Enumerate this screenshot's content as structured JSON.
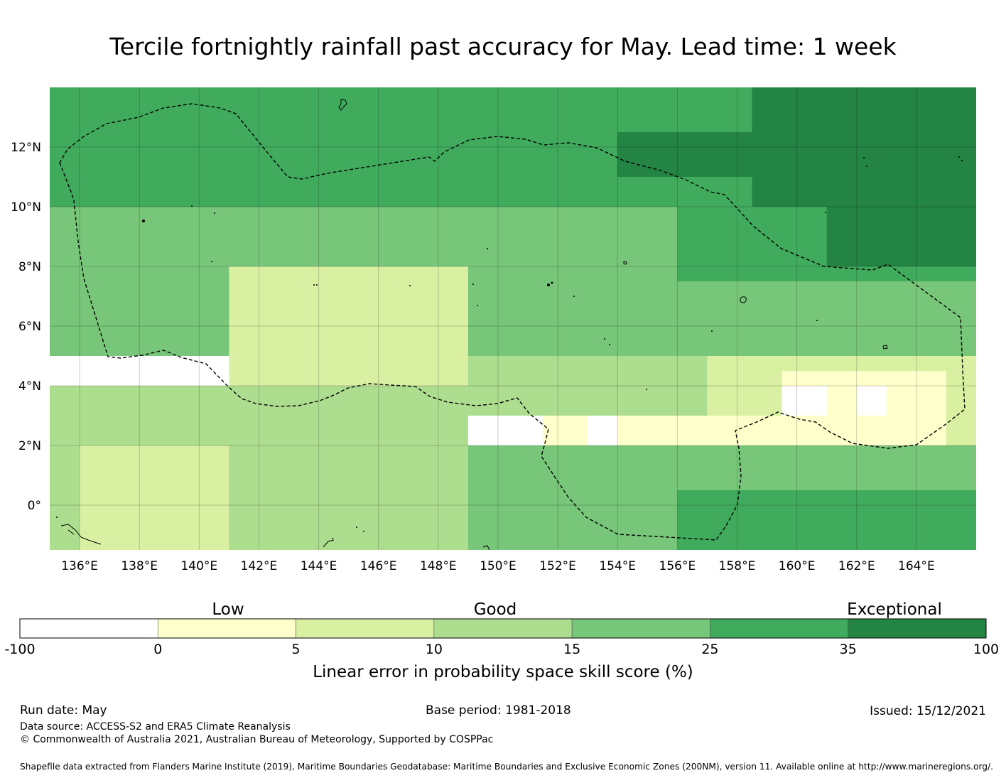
{
  "title": "Tercile fortnightly rainfall past accuracy for May. Lead time: 1 week",
  "map": {
    "lon_range": [
      135,
      166
    ],
    "lat_range": [
      -1.5,
      14
    ],
    "lat_ticks": [
      {
        "value": 12,
        "label": "12°N"
      },
      {
        "value": 10,
        "label": "10°N"
      },
      {
        "value": 8,
        "label": "8°N"
      },
      {
        "value": 6,
        "label": "6°N"
      },
      {
        "value": 4,
        "label": "4°N"
      },
      {
        "value": 2,
        "label": "2°N"
      },
      {
        "value": 0,
        "label": "0°"
      }
    ],
    "lon_ticks": [
      {
        "value": 136,
        "label": "136°E"
      },
      {
        "value": 138,
        "label": "138°E"
      },
      {
        "value": 140,
        "label": "140°E"
      },
      {
        "value": 142,
        "label": "142°E"
      },
      {
        "value": 144,
        "label": "144°E"
      },
      {
        "value": 146,
        "label": "146°E"
      },
      {
        "value": 148,
        "label": "148°E"
      },
      {
        "value": 150,
        "label": "150°E"
      },
      {
        "value": 152,
        "label": "152°E"
      },
      {
        "value": 154,
        "label": "154°E"
      },
      {
        "value": 156,
        "label": "156°E"
      },
      {
        "value": 158,
        "label": "158°E"
      },
      {
        "value": 160,
        "label": "160°E"
      },
      {
        "value": 162,
        "label": "162°E"
      },
      {
        "value": 164,
        "label": "164°E"
      }
    ],
    "skill_bands": [
      {
        "lat_min": 10,
        "lat_max": 14,
        "lon_min": 135,
        "lon_max": 166,
        "level": 5
      },
      {
        "lat_min": 10,
        "lat_max": 14,
        "lon_min": 158.5,
        "lon_max": 166,
        "level": 6
      },
      {
        "lat_min": 11,
        "lat_max": 12.5,
        "lon_min": 154,
        "lon_max": 158.5,
        "level": 6
      },
      {
        "lat_min": 7.5,
        "lat_max": 10,
        "lon_min": 135,
        "lon_max": 166,
        "level": 4
      },
      {
        "lat_min": 7.5,
        "lat_max": 10,
        "lon_min": 156,
        "lon_max": 166,
        "level": 5
      },
      {
        "lat_min": 8,
        "lat_max": 10,
        "lon_min": 161,
        "lon_max": 166,
        "level": 6
      },
      {
        "lat_min": 5,
        "lat_max": 7.5,
        "lon_min": 135,
        "lon_max": 166,
        "level": 4
      },
      {
        "lat_min": 4,
        "lat_max": 8,
        "lon_min": 141,
        "lon_max": 149,
        "level": 2
      },
      {
        "lat_min": 3,
        "lat_max": 5,
        "lon_min": 149,
        "lon_max": 157,
        "level": 3
      },
      {
        "lat_min": 1.5,
        "lat_max": 5,
        "lon_min": 157,
        "lon_max": 166,
        "level": 2
      },
      {
        "lat_min": 1.5,
        "lat_max": 3,
        "lon_min": 151.5,
        "lon_max": 160,
        "level": 1
      },
      {
        "lat_min": 2,
        "lat_max": 4.5,
        "lon_min": 159.5,
        "lon_max": 165,
        "level": 1
      },
      {
        "lat_min": 3,
        "lat_max": 4,
        "lon_min": 159.5,
        "lon_max": 161,
        "level": 0
      },
      {
        "lat_min": 3,
        "lat_max": 4,
        "lon_min": 162,
        "lon_max": 163,
        "level": 0
      },
      {
        "lat_min": 2,
        "lat_max": 3,
        "lon_min": 153,
        "lon_max": 154,
        "level": 0
      },
      {
        "lat_min": -1.5,
        "lat_max": 4,
        "lon_min": 135,
        "lon_max": 149,
        "level": 3
      },
      {
        "lat_min": -1.5,
        "lat_max": 2,
        "lon_min": 136,
        "lon_max": 141,
        "level": 2
      },
      {
        "lat_min": -1.5,
        "lat_max": 2,
        "lon_min": 149,
        "lon_max": 166,
        "level": 4
      },
      {
        "lat_min": -1.5,
        "lat_max": 0.5,
        "lon_min": 156,
        "lon_max": 166,
        "level": 5
      }
    ]
  },
  "legend": {
    "category_labels": {
      "low": "Low",
      "good": "Good",
      "exceptional": "Exceptional"
    },
    "colors": [
      "#ffffff",
      "#ffffcc",
      "#d9f0a3",
      "#addd8e",
      "#78c679",
      "#41ab5d",
      "#238443"
    ],
    "ticks": [
      "-100",
      "0",
      "5",
      "10",
      "15",
      "25",
      "35",
      "100"
    ],
    "label": "Linear error in probability space skill score (%)"
  },
  "footer": {
    "run_date": "Run date: May",
    "base_period": "Base period: 1981-2018",
    "issued": "Issued: 15/12/2021",
    "data_source": "Data source: ACCESS-S2 and ERA5 Climate Reanalysis",
    "copyright": "© Commonwealth of Australia 2021, Australian Bureau of Meteorology, Supported by COSPPac",
    "shapefile": "Shapefile data extracted from Flanders Marine Institute (2019), Maritime Boundaries Geodatabase: Maritime Boundaries and Exclusive Economic Zones (200NM), version 11. Available online at http://www.marineregions.org/."
  }
}
